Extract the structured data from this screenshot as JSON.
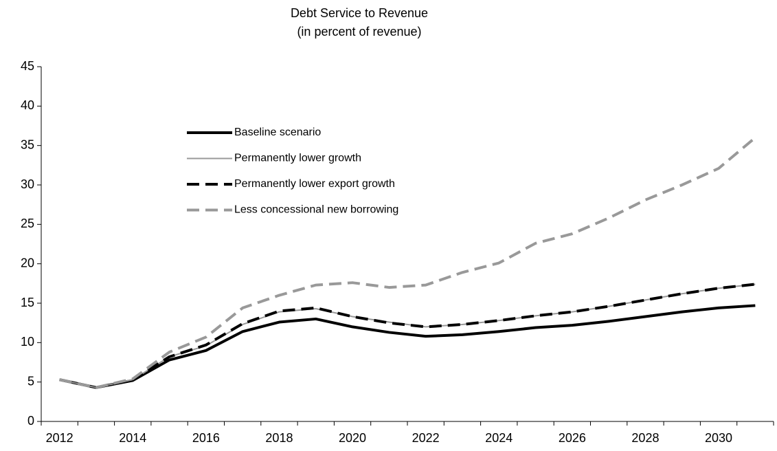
{
  "chart_data": {
    "type": "line",
    "title": "Debt Service to Revenue",
    "subtitle": "(in percent of revenue)",
    "categories": [
      "2012",
      null,
      "2014",
      null,
      "2016",
      null,
      "2018",
      null,
      "2020",
      null,
      "2022",
      null,
      "2024",
      null,
      "2026",
      null,
      "2028",
      null,
      "2030",
      null
    ],
    "series": [
      {
        "name": "Baseline scenario",
        "color": "#000000",
        "dash": false,
        "width": 4,
        "values": [
          5.3,
          4.3,
          5.2,
          7.8,
          9.0,
          11.4,
          12.6,
          13.0,
          12.0,
          11.3,
          10.8,
          11.0,
          11.4,
          11.9,
          12.2,
          12.7,
          13.3,
          13.9,
          14.4,
          14.7
        ]
      },
      {
        "name": "Permanently lower growth",
        "color": "#999999",
        "dash": false,
        "width": 2,
        "values": [
          5.3,
          4.3,
          5.3,
          8.2,
          9.6,
          12.3,
          13.9,
          14.3,
          13.3,
          12.6,
          12.0,
          12.3,
          12.8,
          13.4,
          13.9,
          14.6,
          15.4,
          16.2,
          16.9,
          17.4
        ]
      },
      {
        "name": "Permanently lower export growth",
        "color": "#000000",
        "dash": true,
        "width": 4,
        "values": [
          5.3,
          4.3,
          5.3,
          8.2,
          9.7,
          12.4,
          14.0,
          14.4,
          13.3,
          12.5,
          12.0,
          12.3,
          12.8,
          13.4,
          13.9,
          14.6,
          15.4,
          16.2,
          16.9,
          17.4
        ]
      },
      {
        "name": "Less concessional new borrowing",
        "color": "#999999",
        "dash": true,
        "width": 4,
        "values": [
          5.3,
          4.3,
          5.4,
          8.8,
          10.7,
          14.4,
          16.0,
          17.3,
          17.6,
          17.0,
          17.3,
          18.9,
          20.1,
          22.6,
          23.8,
          25.8,
          28.1,
          30.0,
          32.1,
          36.0
        ]
      }
    ],
    "ylim": [
      0,
      45
    ],
    "yticks": [
      0,
      5,
      10,
      15,
      20,
      25,
      30,
      35,
      40,
      45
    ]
  }
}
